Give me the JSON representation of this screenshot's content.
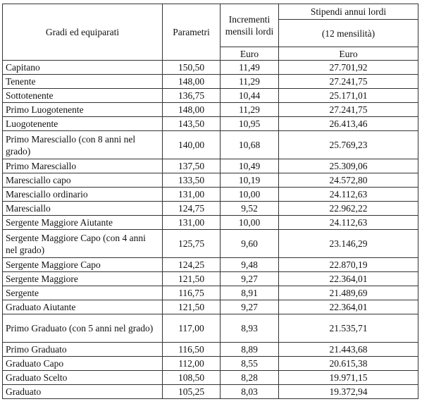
{
  "table": {
    "header": {
      "grade": "Gradi ed equiparati",
      "parameters": "Parametri",
      "increments": "Incrementi mensili lordi",
      "salary": "Stipendi annui lordi",
      "months": "(12 mensilità)",
      "increments_unit": "Euro",
      "salary_unit": "Euro"
    },
    "rows": [
      [
        "Capitano",
        "150,50",
        "11,49",
        "27.701,92"
      ],
      [
        "Tenente",
        "148,00",
        "11,29",
        "27.241,75"
      ],
      [
        "Sottotenente",
        "136,75",
        "10,44",
        "25.171,01"
      ],
      [
        "Primo Luogotenente",
        "148,00",
        "11,29",
        "27.241,75"
      ],
      [
        "Luogotenente",
        "143,50",
        "10,95",
        "26.413,46"
      ],
      [
        "Primo Maresciallo (con 8 anni nel grado)",
        "140,00",
        "10,68",
        "25.769,23"
      ],
      [
        "Primo Maresciallo",
        "137,50",
        "10,49",
        "25.309,06"
      ],
      [
        "Maresciallo capo",
        "133,50",
        "10,19",
        "24.572,80"
      ],
      [
        "Maresciallo ordinario",
        "131,00",
        "10,00",
        "24.112,63"
      ],
      [
        "Maresciallo",
        "124,75",
        "9,52",
        "22.962,22"
      ],
      [
        "Sergente Maggiore Aiutante",
        "131,00",
        "10,00",
        "24.112,63"
      ],
      [
        "Sergente Maggiore Capo (con 4 anni nel grado)",
        "125,75",
        "9,60",
        "23.146,29"
      ],
      [
        "Sergente Maggiore Capo",
        "124,25",
        "9,48",
        "22.870,19"
      ],
      [
        "Sergente Maggiore",
        "121,50",
        "9,27",
        "22.364,01"
      ],
      [
        "Sergente",
        "116,75",
        "8,91",
        "21.489,69"
      ],
      [
        "Graduato Aiutante",
        "121,50",
        "9,27",
        "22.364,01"
      ],
      [
        "Primo Graduato (con 5 anni nel grado)",
        "117,00",
        "8,93",
        "21.535,71"
      ],
      [
        "Primo Graduato",
        "116,50",
        "8,89",
        "21.443,68"
      ],
      [
        "Graduato Capo",
        "112,00",
        "8,55",
        "20.615,38"
      ],
      [
        "Graduato Scelto",
        "108,50",
        "8,28",
        "19.971,15"
      ],
      [
        "Graduato",
        "105,25",
        "8,03",
        "19.372,94"
      ]
    ]
  }
}
